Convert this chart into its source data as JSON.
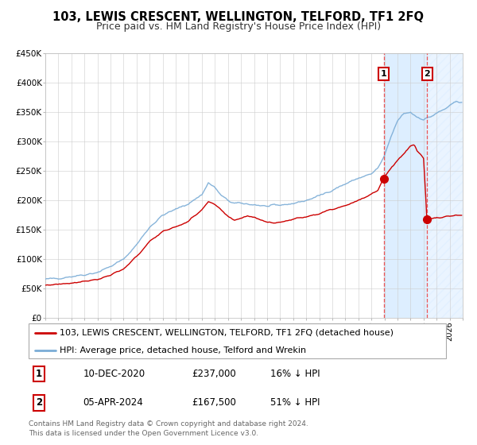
{
  "title": "103, LEWIS CRESCENT, WELLINGTON, TELFORD, TF1 2FQ",
  "subtitle": "Price paid vs. HM Land Registry's House Price Index (HPI)",
  "legend_line1": "103, LEWIS CRESCENT, WELLINGTON, TELFORD, TF1 2FQ (detached house)",
  "legend_line2": "HPI: Average price, detached house, Telford and Wrekin",
  "annotation1_label": "1",
  "annotation1_date": "10-DEC-2020",
  "annotation1_price": "£237,000",
  "annotation1_hpi": "16% ↓ HPI",
  "annotation2_label": "2",
  "annotation2_date": "05-APR-2024",
  "annotation2_price": "£167,500",
  "annotation2_hpi": "51% ↓ HPI",
  "sale1_x": 2020.94,
  "sale1_y": 237000,
  "sale2_x": 2024.27,
  "sale2_y": 167500,
  "xmin": 1995,
  "xmax": 2027,
  "ymin": 0,
  "ymax": 450000,
  "yticks": [
    0,
    50000,
    100000,
    150000,
    200000,
    250000,
    300000,
    350000,
    400000,
    450000
  ],
  "ytick_labels": [
    "£0",
    "£50K",
    "£100K",
    "£150K",
    "£200K",
    "£250K",
    "£300K",
    "£350K",
    "£400K",
    "£450K"
  ],
  "hpi_color": "#7aacd6",
  "price_color": "#cc0000",
  "dot_color": "#cc0000",
  "vline_color": "#ee4444",
  "shade_color": "#ddeeff",
  "footer": "Contains HM Land Registry data © Crown copyright and database right 2024.\nThis data is licensed under the Open Government Licence v3.0.",
  "title_fontsize": 10.5,
  "subtitle_fontsize": 9,
  "tick_fontsize": 7.5,
  "legend_fontsize": 8,
  "annotation_fontsize": 8,
  "footer_fontsize": 6.5,
  "hpi_anchors": [
    [
      1995.0,
      66000
    ],
    [
      1996.0,
      68000
    ],
    [
      1997.0,
      71000
    ],
    [
      1998.0,
      74000
    ],
    [
      1999.0,
      78000
    ],
    [
      2000.0,
      88000
    ],
    [
      2001.0,
      100000
    ],
    [
      2002.0,
      125000
    ],
    [
      2003.0,
      155000
    ],
    [
      2004.0,
      175000
    ],
    [
      2005.0,
      185000
    ],
    [
      2006.0,
      195000
    ],
    [
      2007.0,
      210000
    ],
    [
      2007.5,
      230000
    ],
    [
      2008.0,
      222000
    ],
    [
      2008.5,
      208000
    ],
    [
      2009.0,
      200000
    ],
    [
      2009.5,
      195000
    ],
    [
      2010.0,
      195000
    ],
    [
      2011.0,
      193000
    ],
    [
      2012.0,
      190000
    ],
    [
      2013.0,
      192000
    ],
    [
      2014.0,
      195000
    ],
    [
      2015.0,
      200000
    ],
    [
      2016.0,
      208000
    ],
    [
      2017.0,
      218000
    ],
    [
      2018.0,
      228000
    ],
    [
      2019.0,
      238000
    ],
    [
      2020.0,
      245000
    ],
    [
      2020.5,
      255000
    ],
    [
      2021.0,
      275000
    ],
    [
      2021.5,
      308000
    ],
    [
      2022.0,
      335000
    ],
    [
      2022.5,
      348000
    ],
    [
      2023.0,
      350000
    ],
    [
      2023.5,
      342000
    ],
    [
      2024.0,
      338000
    ],
    [
      2024.5,
      342000
    ],
    [
      2025.0,
      348000
    ],
    [
      2026.0,
      360000
    ],
    [
      2026.5,
      368000
    ]
  ],
  "price_anchors": [
    [
      1995.0,
      56000
    ],
    [
      1996.0,
      58000
    ],
    [
      1997.0,
      60000
    ],
    [
      1998.0,
      63000
    ],
    [
      1999.0,
      66000
    ],
    [
      2000.0,
      73000
    ],
    [
      2001.0,
      83000
    ],
    [
      2002.0,
      105000
    ],
    [
      2003.0,
      130000
    ],
    [
      2004.0,
      148000
    ],
    [
      2005.0,
      155000
    ],
    [
      2006.0,
      165000
    ],
    [
      2007.0,
      185000
    ],
    [
      2007.5,
      197000
    ],
    [
      2008.0,
      193000
    ],
    [
      2008.5,
      183000
    ],
    [
      2009.0,
      172000
    ],
    [
      2009.5,
      167000
    ],
    [
      2010.0,
      170000
    ],
    [
      2010.5,
      174000
    ],
    [
      2011.0,
      172000
    ],
    [
      2011.5,
      168000
    ],
    [
      2012.0,
      163000
    ],
    [
      2012.5,
      162000
    ],
    [
      2013.0,
      163000
    ],
    [
      2013.5,
      166000
    ],
    [
      2014.0,
      168000
    ],
    [
      2015.0,
      173000
    ],
    [
      2016.0,
      178000
    ],
    [
      2017.0,
      185000
    ],
    [
      2018.0,
      192000
    ],
    [
      2019.0,
      200000
    ],
    [
      2020.0,
      210000
    ],
    [
      2020.5,
      218000
    ],
    [
      2020.94,
      237000
    ],
    [
      2021.0,
      242000
    ],
    [
      2021.5,
      255000
    ],
    [
      2022.0,
      268000
    ],
    [
      2022.5,
      280000
    ],
    [
      2023.0,
      293000
    ],
    [
      2023.3,
      295000
    ],
    [
      2023.5,
      285000
    ],
    [
      2023.8,
      278000
    ],
    [
      2024.0,
      272000
    ],
    [
      2024.27,
      167500
    ],
    [
      2024.5,
      168000
    ],
    [
      2025.0,
      170000
    ],
    [
      2026.5,
      175000
    ]
  ]
}
